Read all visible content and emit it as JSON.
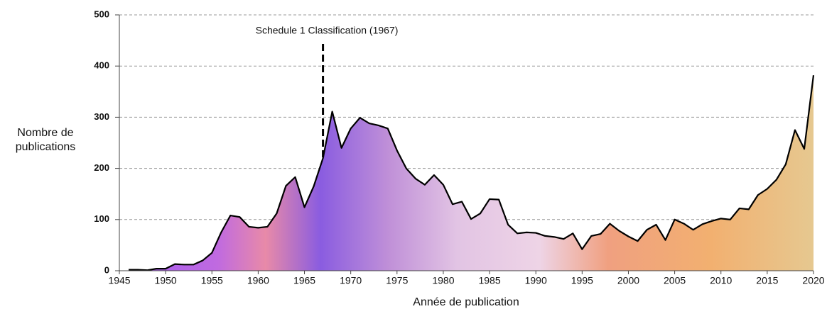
{
  "chart_data": {
    "type": "area",
    "x_label": "Année de publication",
    "y_label": "Nombre de publications",
    "annotations": [
      {
        "text": "Schedule 1 Classification (1967)",
        "x": 1967
      }
    ],
    "x": [
      1946,
      1947,
      1948,
      1949,
      1950,
      1951,
      1952,
      1953,
      1954,
      1955,
      1956,
      1957,
      1958,
      1959,
      1960,
      1961,
      1962,
      1963,
      1964,
      1965,
      1966,
      1967,
      1968,
      1969,
      1970,
      1971,
      1972,
      1973,
      1974,
      1975,
      1976,
      1977,
      1978,
      1979,
      1980,
      1981,
      1982,
      1983,
      1984,
      1985,
      1986,
      1987,
      1988,
      1989,
      1990,
      1991,
      1992,
      1993,
      1994,
      1995,
      1996,
      1997,
      1998,
      1999,
      2000,
      2001,
      2002,
      2003,
      2004,
      2005,
      2006,
      2007,
      2008,
      2009,
      2010,
      2011,
      2012,
      2013,
      2014,
      2015,
      2016,
      2017,
      2018,
      2019,
      2020
    ],
    "values": [
      2,
      2,
      1,
      4,
      4,
      13,
      12,
      12,
      20,
      35,
      75,
      108,
      105,
      86,
      84,
      86,
      112,
      166,
      183,
      124,
      165,
      220,
      311,
      240,
      278,
      299,
      288,
      284,
      278,
      235,
      200,
      180,
      168,
      187,
      168,
      130,
      135,
      101,
      112,
      140,
      139,
      90,
      73,
      75,
      74,
      68,
      66,
      62,
      73,
      42,
      68,
      72,
      92,
      78,
      67,
      58,
      80,
      90,
      60,
      100,
      92,
      80,
      91,
      97,
      102,
      100,
      122,
      120,
      148,
      160,
      178,
      208,
      275,
      238,
      382
    ],
    "line_color": "#000000",
    "xlim": [
      1945,
      2020
    ],
    "xticks": [
      1945,
      1950,
      1955,
      1960,
      1965,
      1970,
      1975,
      1980,
      1985,
      1990,
      1995,
      2000,
      2005,
      2010,
      2015,
      2020
    ],
    "ylim": [
      0,
      500
    ],
    "yticks": [
      0,
      100,
      200,
      300,
      400,
      500
    ],
    "grid": true
  }
}
